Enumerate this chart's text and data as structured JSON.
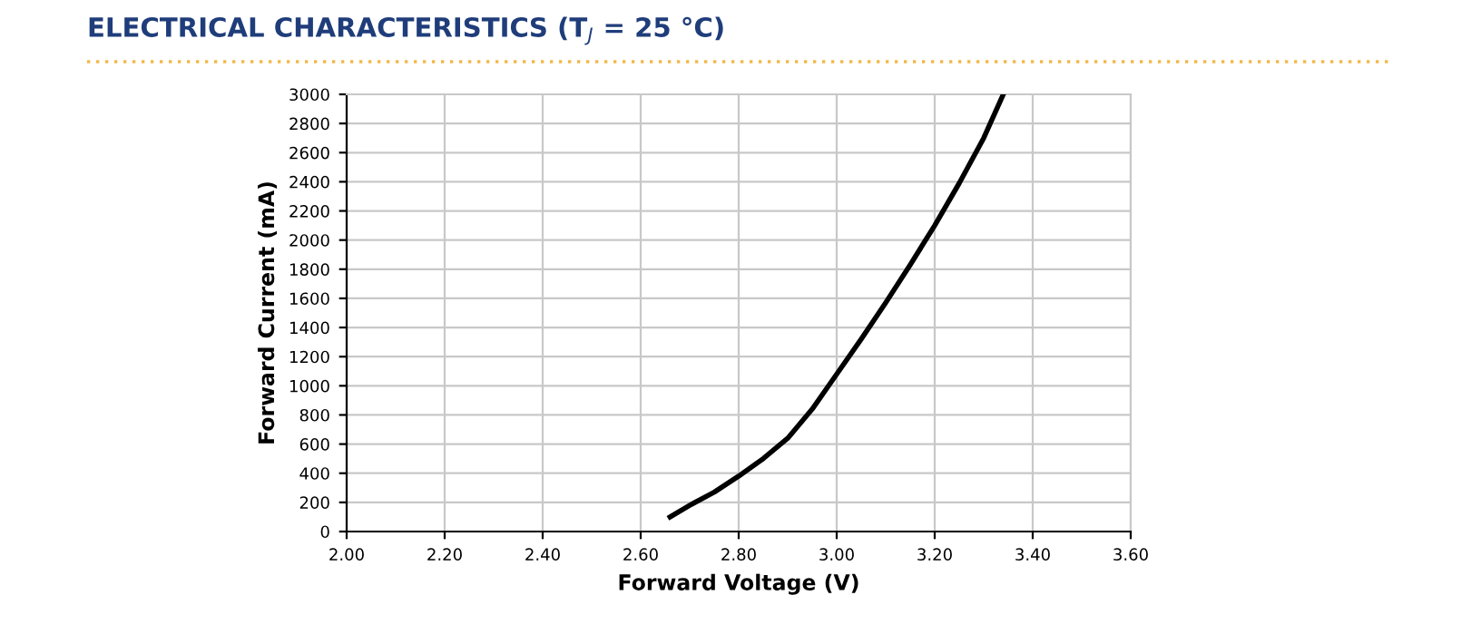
{
  "chart_data": {
    "type": "line",
    "title": "ELECTRICAL CHARACTERISTICS (T$_{J}$ = 25 °C)",
    "xlabel": "Forward Voltage (V)",
    "ylabel": "Forward Current (mA)",
    "series": [
      {
        "color": "#000000",
        "x": [
          2.66,
          2.7,
          2.75,
          2.8,
          2.85,
          2.9,
          2.95,
          3.0,
          3.05,
          3.1,
          3.15,
          3.2,
          3.25,
          3.3,
          3.34
        ],
        "values": [
          100,
          180,
          270,
          380,
          500,
          640,
          840,
          1080,
          1320,
          1570,
          1830,
          2100,
          2390,
          2700,
          3000
        ]
      }
    ],
    "xlim": [
      2.0,
      3.6
    ],
    "xticks": [
      {
        "value": 2.0,
        "label": "2.00"
      },
      {
        "value": 2.2,
        "label": "2.20"
      },
      {
        "value": 2.4,
        "label": "2.40"
      },
      {
        "value": 2.6,
        "label": "2.60"
      },
      {
        "value": 2.8,
        "label": "2.80"
      },
      {
        "value": 3.0,
        "label": "3.00"
      },
      {
        "value": 3.2,
        "label": "3.20"
      },
      {
        "value": 3.4,
        "label": "3.40"
      },
      {
        "value": 3.6,
        "label": "3.60"
      }
    ],
    "ylim": [
      0,
      3000
    ],
    "yticks": [
      0,
      200,
      400,
      600,
      800,
      1000,
      1200,
      1400,
      1600,
      1800,
      2000,
      2200,
      2400,
      2600,
      2800,
      3000
    ],
    "grid": true,
    "legend": false,
    "marker": "none",
    "line_style": "solid"
  }
}
